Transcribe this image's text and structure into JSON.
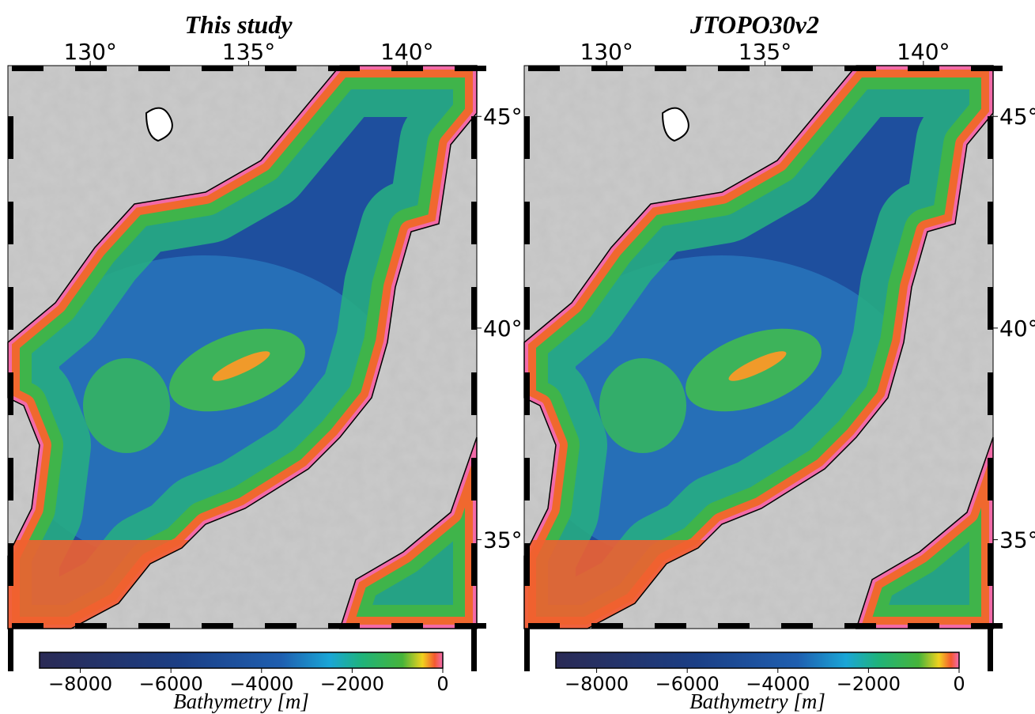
{
  "panels": [
    {
      "title": "This study",
      "lon_range": [
        127.4,
        142.2
      ],
      "lat_range": [
        32.9,
        46.2
      ],
      "lon_ticks": [
        {
          "value": 130,
          "label": "130°"
        },
        {
          "value": 135,
          "label": "135°"
        },
        {
          "value": 140,
          "label": "140°"
        }
      ],
      "lat_ticks": [
        {
          "value": 45,
          "label": "45°"
        },
        {
          "value": 40,
          "label": "40°"
        },
        {
          "value": 35,
          "label": "35°"
        }
      ],
      "colorbar": {
        "label": "Bathymetry [m]",
        "range": [
          -8900,
          0
        ],
        "ticks": [
          {
            "value": -8000,
            "label": "−8000"
          },
          {
            "value": -6000,
            "label": "−6000"
          },
          {
            "value": -4000,
            "label": "−4000"
          },
          {
            "value": -2000,
            "label": "−2000"
          },
          0
        ]
      }
    },
    {
      "title": "JTOPO30v2",
      "lon_range": [
        127.4,
        142.2
      ],
      "lat_range": [
        32.9,
        46.2
      ],
      "lon_ticks": [
        {
          "value": 130,
          "label": "130°"
        },
        {
          "value": 135,
          "label": "135°"
        },
        {
          "value": 140,
          "label": "140°"
        }
      ],
      "lat_ticks": [
        {
          "value": 45,
          "label": "45°"
        },
        {
          "value": 40,
          "label": "40°"
        },
        {
          "value": 35,
          "label": "35°"
        }
      ],
      "colorbar": {
        "label": "Bathymetry [m]",
        "range": [
          -8900,
          0
        ],
        "ticks": [
          {
            "value": -8000,
            "label": "−8000"
          },
          {
            "value": -6000,
            "label": "−6000"
          },
          {
            "value": -4000,
            "label": "−4000"
          },
          {
            "value": -2000,
            "label": "−2000"
          },
          0
        ]
      }
    }
  ]
}
